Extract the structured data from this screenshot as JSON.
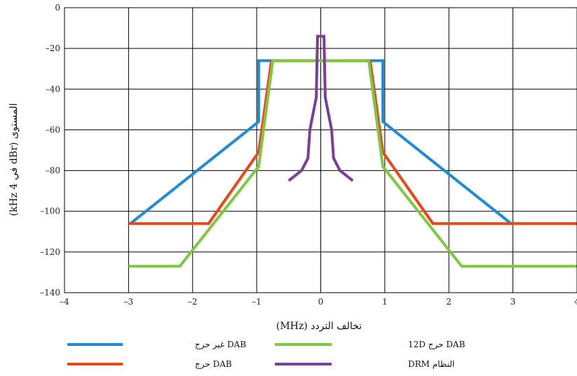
{
  "chart_data": {
    "type": "line",
    "xlabel": "تخالف التردد (MHz)",
    "ylabel": "المستوى (dBr في 4 kHz)",
    "xlim": [
      -4,
      4
    ],
    "ylim": [
      -140,
      0
    ],
    "xticks": [
      -4,
      -3,
      -2,
      -1,
      0,
      1,
      2,
      3,
      4
    ],
    "yticks": [
      0,
      -20,
      -40,
      -60,
      -80,
      -100,
      -120,
      -140
    ],
    "xtick_labels": [
      "–4",
      "–3",
      "–2",
      "–1",
      "0",
      "1",
      "2",
      "3",
      "4"
    ],
    "ytick_labels": [
      "0",
      "–20",
      "–40",
      "–60",
      "–80",
      "–100",
      "–120",
      "–140"
    ],
    "grid": true,
    "legend_placement": "bottom",
    "series": [
      {
        "name": "DAB غير حرج",
        "color": "#1f8ad6",
        "points": [
          [
            -2.97,
            -106
          ],
          [
            -0.97,
            -56
          ],
          [
            -0.97,
            -26
          ],
          [
            0.97,
            -26
          ],
          [
            0.97,
            -56
          ],
          [
            2.97,
            -106
          ]
        ]
      },
      {
        "name": "DAB حرج",
        "color": "#e8481c",
        "points": [
          [
            -3,
            -106
          ],
          [
            -1.75,
            -106
          ],
          [
            -0.97,
            -71
          ],
          [
            -0.77,
            -26
          ],
          [
            0.77,
            -26
          ],
          [
            0.97,
            -71
          ],
          [
            1.75,
            -106
          ],
          [
            4,
            -106
          ]
        ]
      },
      {
        "name": "DAB حرج 12D",
        "color": "#7ec83f",
        "points": [
          [
            -3,
            -127
          ],
          [
            -2.2,
            -127
          ],
          [
            -0.97,
            -78
          ],
          [
            -0.75,
            -26
          ],
          [
            0.75,
            -26
          ],
          [
            0.97,
            -78
          ],
          [
            2.2,
            -127
          ],
          [
            4,
            -127
          ]
        ]
      },
      {
        "name": "النظام DRM",
        "color": "#7b3f98",
        "points": [
          [
            -0.5,
            -85
          ],
          [
            -0.3,
            -80
          ],
          [
            -0.2,
            -74
          ],
          [
            -0.17,
            -60
          ],
          [
            -0.07,
            -44
          ],
          [
            -0.05,
            -14
          ],
          [
            0.05,
            -14
          ],
          [
            0.07,
            -44
          ],
          [
            0.17,
            -60
          ],
          [
            0.2,
            -74
          ],
          [
            0.3,
            -80
          ],
          [
            0.5,
            -85
          ]
        ]
      }
    ]
  }
}
